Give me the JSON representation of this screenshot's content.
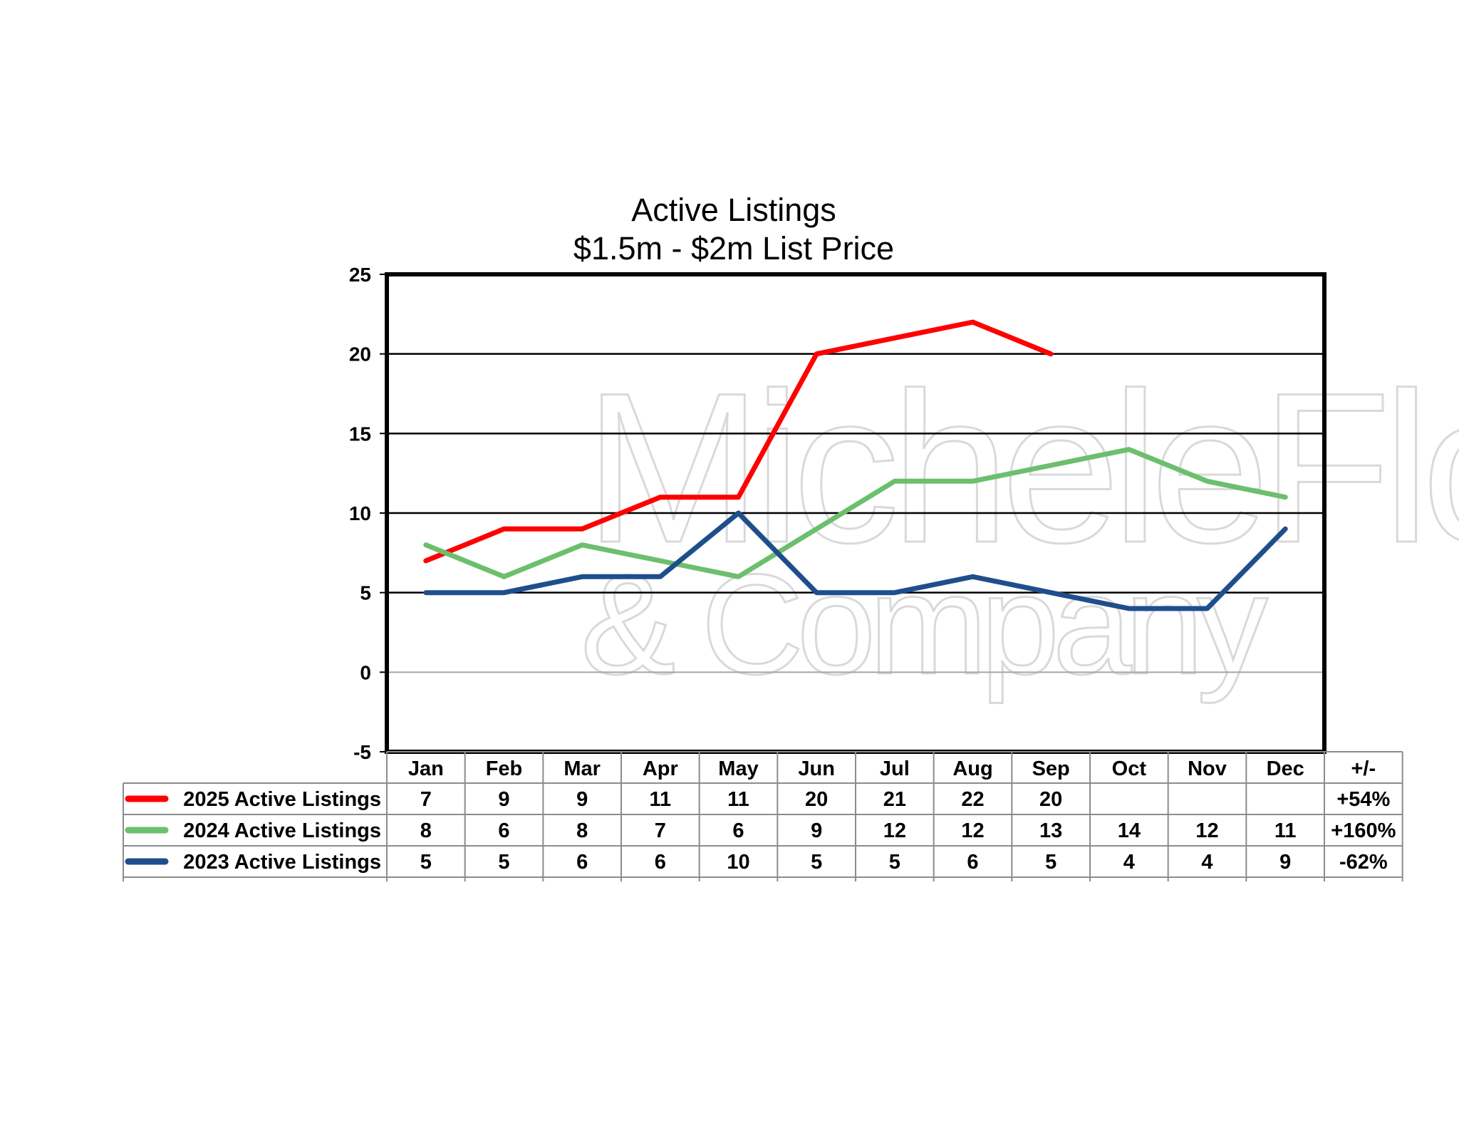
{
  "chart_data": {
    "type": "line",
    "title": "Active Listings",
    "subtitle": "$1.5m - $2m List Price",
    "categories": [
      "Jan",
      "Feb",
      "Mar",
      "Apr",
      "May",
      "Jun",
      "Jul",
      "Aug",
      "Sep",
      "Oct",
      "Nov",
      "Dec"
    ],
    "change_header": "+/-",
    "ylim": [
      -5,
      25
    ],
    "yticks": [
      -5,
      0,
      5,
      10,
      15,
      20,
      25
    ],
    "grid": true,
    "legend": "data-table-below",
    "series": [
      {
        "name": "2025 Active Listings",
        "color": "#ff0000",
        "values": [
          7,
          9,
          9,
          11,
          11,
          20,
          21,
          22,
          20,
          null,
          null,
          null
        ],
        "change": "+54%"
      },
      {
        "name": "2024 Active Listings",
        "color": "#6cbf6c",
        "values": [
          8,
          6,
          8,
          7,
          6,
          9,
          12,
          12,
          13,
          14,
          12,
          11
        ],
        "change": "+160%"
      },
      {
        "name": "2023 Active Listings",
        "color": "#1f4e8c",
        "values": [
          5,
          5,
          6,
          6,
          10,
          5,
          5,
          6,
          5,
          4,
          4,
          9
        ],
        "change": "-62%"
      }
    ]
  },
  "watermark": {
    "line1": "MicheleFlory",
    "line2": "& Company"
  }
}
